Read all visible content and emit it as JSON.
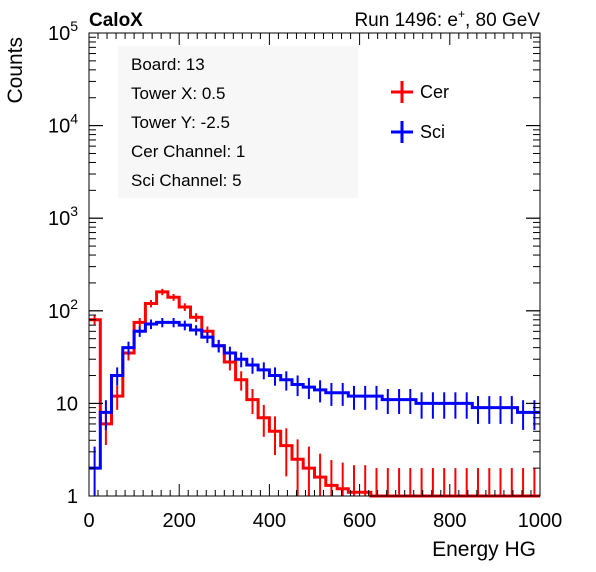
{
  "header": {
    "experiment": "CaloX",
    "run_info_prefix": "Run 1496: e",
    "run_info_sup": "+",
    "run_info_suffix": ", 80 GeV"
  },
  "info_box": {
    "lines": [
      "Board: 13",
      "Tower X: 0.5",
      "Tower Y: -2.5",
      "Cer Channel: 1",
      "Sci Channel: 5"
    ]
  },
  "chart_data": {
    "type": "line",
    "style": "step histogram with error bars",
    "xlabel": "Energy HG",
    "ylabel": "Counts",
    "xlim": [
      0,
      1000
    ],
    "ylim": [
      1,
      100000
    ],
    "yscale": "log",
    "x_ticks": [
      "0",
      "200",
      "400",
      "600",
      "800",
      "1000"
    ],
    "y_ticks": [
      {
        "base": "1",
        "exp": ""
      },
      {
        "base": "10",
        "exp": ""
      },
      {
        "base": "10",
        "exp": "2"
      },
      {
        "base": "10",
        "exp": "3"
      },
      {
        "base": "10",
        "exp": "4"
      },
      {
        "base": "10",
        "exp": "5"
      }
    ],
    "legend_position": "top-right",
    "x": [
      0,
      25,
      50,
      75,
      100,
      125,
      150,
      175,
      200,
      225,
      250,
      275,
      300,
      325,
      350,
      375,
      400,
      425,
      450,
      475,
      500,
      525,
      550,
      575,
      600,
      625,
      650,
      675,
      700,
      725,
      750,
      775,
      800,
      825,
      850,
      875,
      900,
      925,
      950,
      975,
      1000
    ],
    "series": [
      {
        "name": "Cer",
        "color": "#ff0000",
        "values": [
          80,
          6,
          12,
          35,
          75,
          120,
          160,
          140,
          110,
          85,
          60,
          42,
          28,
          18,
          11,
          7,
          5,
          3.5,
          2.5,
          2,
          1.6,
          1.3,
          1.2,
          1.1,
          1.1,
          1,
          1,
          1,
          1,
          1,
          1,
          1,
          1,
          1,
          1,
          1,
          1,
          1,
          1,
          1,
          1
        ]
      },
      {
        "name": "Sci",
        "color": "#0000ff",
        "values": [
          2,
          8,
          20,
          40,
          60,
          72,
          75,
          75,
          70,
          62,
          52,
          42,
          35,
          30,
          26,
          23,
          20,
          18,
          16,
          15,
          14,
          13,
          13,
          12,
          12,
          12,
          11,
          11,
          11,
          10,
          10,
          10,
          10,
          10,
          9,
          9,
          9,
          9,
          8,
          8,
          8
        ]
      }
    ]
  }
}
